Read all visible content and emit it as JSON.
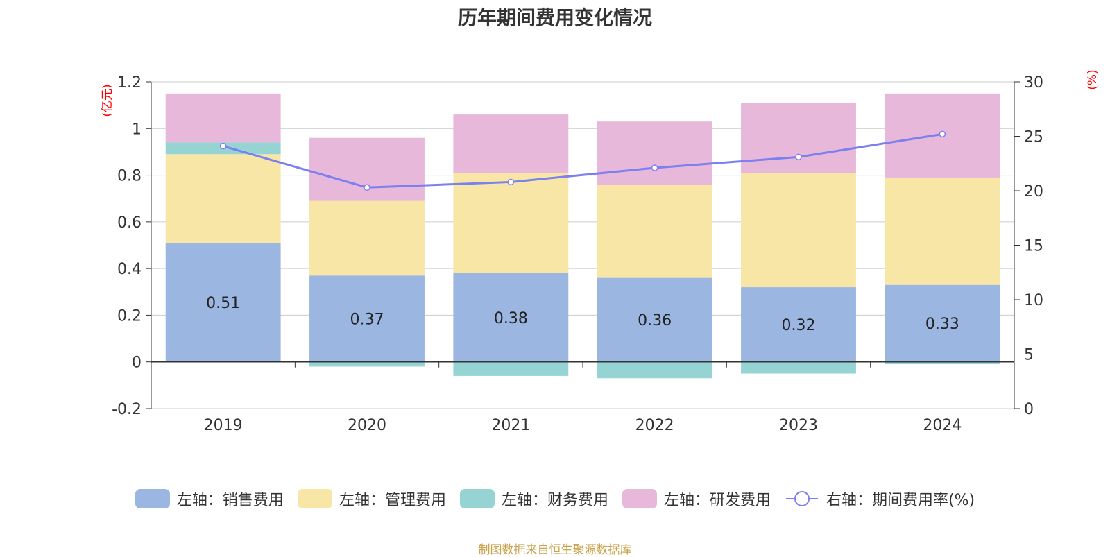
{
  "title": "历年期间费用变化情况",
  "source_note": "制图数据来自恒生聚源数据库",
  "chart_data": {
    "type": "bar",
    "categories": [
      "2019",
      "2020",
      "2021",
      "2022",
      "2023",
      "2024"
    ],
    "stacked": true,
    "left_axis": {
      "unit_label": "(亿元)",
      "ylim": [
        -0.2,
        1.2
      ],
      "ticks": [
        "-0.2",
        "0",
        "0.2",
        "0.4",
        "0.6",
        "0.8",
        "1",
        "1.2"
      ],
      "tick_values": [
        -0.2,
        0,
        0.2,
        0.4,
        0.6,
        0.8,
        1.0,
        1.2
      ]
    },
    "right_axis": {
      "unit_label": "(%)",
      "ylim": [
        0,
        30
      ],
      "ticks": [
        "0",
        "5",
        "10",
        "15",
        "20",
        "25",
        "30"
      ],
      "tick_values": [
        0,
        5,
        10,
        15,
        20,
        25,
        30
      ]
    },
    "series": [
      {
        "name": "左轴：销售费用",
        "axis": "left",
        "kind": "bar",
        "color": "#9bb6e0",
        "values": [
          0.51,
          0.37,
          0.38,
          0.36,
          0.32,
          0.33
        ],
        "labels": [
          "0.51",
          "0.37",
          "0.38",
          "0.36",
          "0.32",
          "0.33"
        ]
      },
      {
        "name": "左轴：管理费用",
        "axis": "left",
        "kind": "bar",
        "color": "#f8e6a7",
        "values": [
          0.38,
          0.32,
          0.43,
          0.4,
          0.49,
          0.46
        ]
      },
      {
        "name": "左轴：财务费用",
        "axis": "left",
        "kind": "bar",
        "color": "#96d4d4",
        "values": [
          0.05,
          -0.02,
          -0.06,
          -0.07,
          -0.05,
          -0.01
        ]
      },
      {
        "name": "左轴：研发费用",
        "axis": "left",
        "kind": "bar",
        "color": "#e7b8d9",
        "values": [
          0.21,
          0.27,
          0.25,
          0.27,
          0.3,
          0.36
        ]
      },
      {
        "name": "右轴：期间费用率(%)",
        "axis": "right",
        "kind": "line",
        "color": "#7b7ff0",
        "values": [
          24.1,
          20.3,
          20.8,
          22.1,
          23.1,
          25.2
        ]
      }
    ],
    "grid": true,
    "legend_position": "bottom"
  }
}
